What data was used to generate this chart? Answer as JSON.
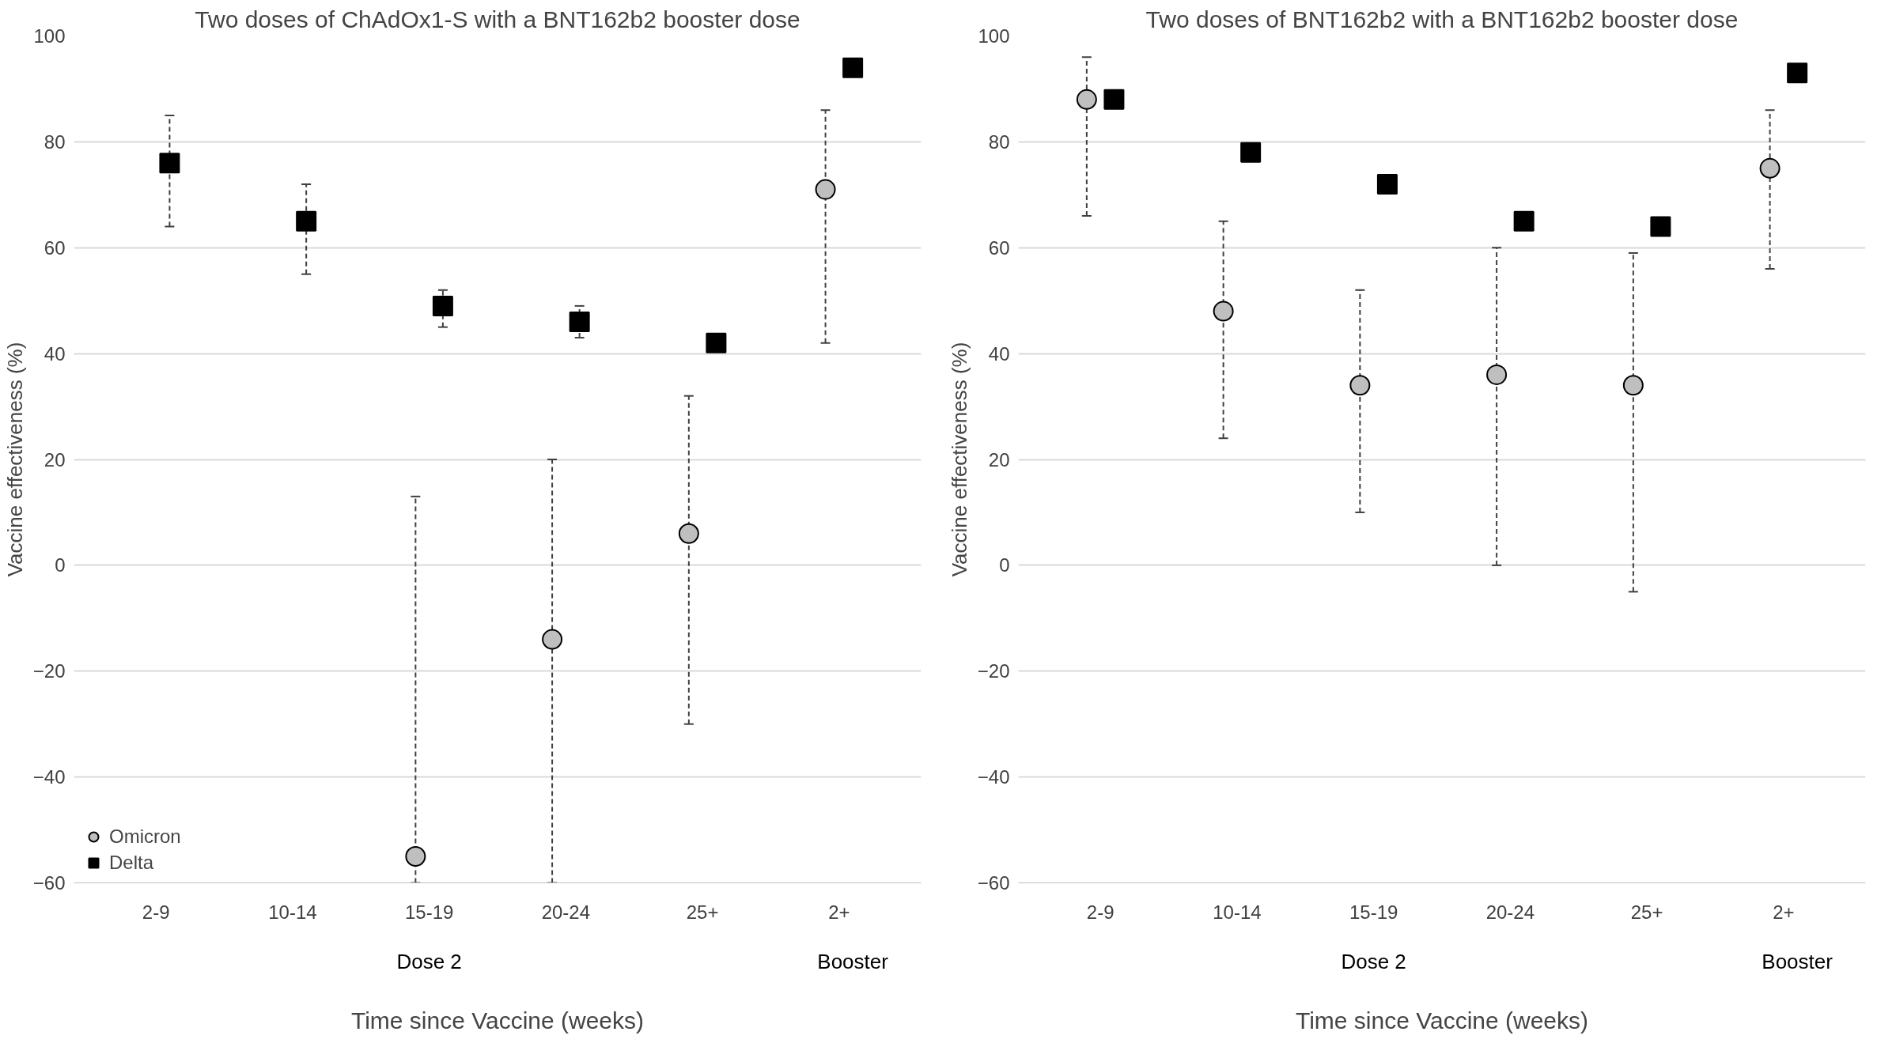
{
  "chart_data": [
    {
      "type": "scatter",
      "title": "Two doses of ChAdOx1-S with a BNT162b2 booster dose",
      "xlabel": "Time since Vaccine (weeks)",
      "ylabel": "Vaccine effectiveness (%)",
      "categories": [
        "2-9",
        "10-14",
        "15-19",
        "20-24",
        "25+",
        "2+"
      ],
      "ylim": [
        -60,
        100
      ],
      "yticks": [
        -60,
        -40,
        -20,
        0,
        20,
        40,
        60,
        80,
        100
      ],
      "grid": "y",
      "legend": "bottom left",
      "annotations": [
        "Dose 2",
        "Booster"
      ],
      "series": [
        {
          "name": "Omicron",
          "color": "#bfbfbf",
          "marker": "circle",
          "values": [
            null,
            null,
            -55,
            -14,
            6,
            71
          ],
          "errors": [
            null,
            null,
            [
              -60,
              13
            ],
            [
              -60,
              20
            ],
            [
              -30,
              32
            ],
            [
              42,
              86
            ]
          ]
        },
        {
          "name": "Delta",
          "color": "#000000",
          "marker": "square",
          "values": [
            76,
            65,
            49,
            46,
            42,
            94
          ],
          "errors": [
            [
              64,
              85
            ],
            [
              55,
              72
            ],
            [
              45,
              52
            ],
            [
              43,
              49
            ],
            null,
            null
          ]
        }
      ]
    },
    {
      "type": "scatter",
      "title": "Two doses of BNT162b2 with a BNT162b2 booster dose",
      "xlabel": "Time since Vaccine (weeks)",
      "ylabel": "Vaccine effectiveness (%)",
      "categories": [
        "2-9",
        "10-14",
        "15-19",
        "20-24",
        "25+",
        "2+"
      ],
      "ylim": [
        -60,
        100
      ],
      "yticks": [
        -60,
        -40,
        -20,
        0,
        20,
        40,
        60,
        80,
        100
      ],
      "grid": "y",
      "annotations": [
        "Dose 2",
        "Booster"
      ],
      "series": [
        {
          "color": "#bfbfbf",
          "marker": "circle",
          "values": [
            88,
            48,
            34,
            36,
            34,
            75
          ],
          "errors": [
            [
              66,
              96
            ],
            [
              24,
              65
            ],
            [
              10,
              52
            ],
            [
              0,
              60
            ],
            [
              -5,
              59
            ],
            [
              56,
              86
            ]
          ]
        },
        {
          "color": "#000000",
          "marker": "square",
          "values": [
            88,
            78,
            72,
            65,
            64,
            93
          ]
        }
      ]
    }
  ]
}
